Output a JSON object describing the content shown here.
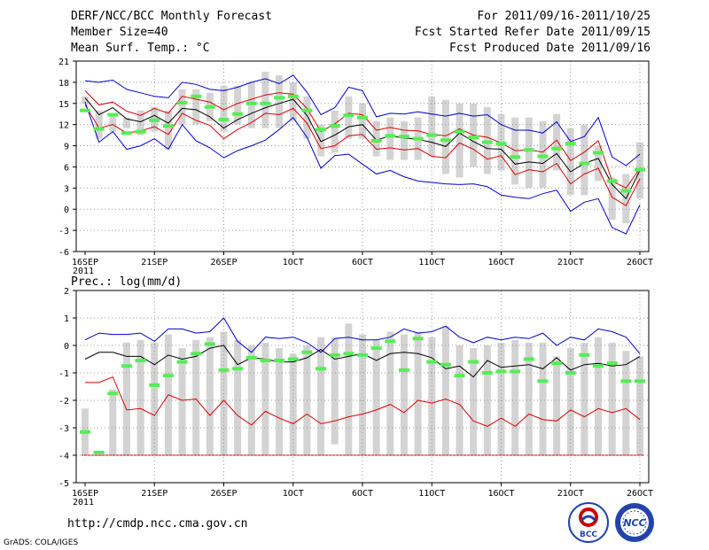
{
  "header": {
    "title": "DERF/NCC/BCC Monthly Forecast",
    "member_size": "Member Size=40",
    "variable": "Mean Surf. Temp.: °C",
    "period": "For 2011/09/16-2011/10/25",
    "started_date": "Fcst Started Refer Date 2011/09/15",
    "produced_date": "Fcst Produced Date 2011/09/16"
  },
  "footer": {
    "url": "http://cmdp.ncc.cma.gov.cn",
    "credit": "GrADS: COLA/IGES",
    "logo_bcc_text": "BCC",
    "logo_ncc_text": "NCC"
  },
  "colors": {
    "outer": "#0000cc",
    "inner": "#dd0000",
    "mean": "#000000",
    "bar": "#d3d3d3",
    "obs": "#55ee55",
    "grid": "#999999"
  },
  "chart_data": [
    {
      "type": "line",
      "name": "temperature",
      "ylabel": "Mean Surf. Temp.: °C",
      "ylim": [
        -6,
        21
      ],
      "yticks": [
        -6,
        -3,
        0,
        3,
        6,
        9,
        12,
        15,
        18,
        21
      ],
      "xticks": [
        {
          "day": 1,
          "label": "16SEP",
          "sub": "2011"
        },
        {
          "day": 6,
          "label": "21SEP"
        },
        {
          "day": 11,
          "label": "26SEP"
        },
        {
          "day": 16,
          "label": "1OCT"
        },
        {
          "day": 21,
          "label": "6OCT"
        },
        {
          "day": 26,
          "label": "11OCT"
        },
        {
          "day": 31,
          "label": "16OCT"
        },
        {
          "day": 36,
          "label": "21OCT"
        },
        {
          "day": 41,
          "label": "26OCT"
        }
      ],
      "grid": true,
      "series": [
        {
          "name": "max",
          "role": "outer",
          "values": [
            18.2,
            18.0,
            18.3,
            17.0,
            16.5,
            16.0,
            15.8,
            18.0,
            17.7,
            17.0,
            16.8,
            17.3,
            18.0,
            18.5,
            17.8,
            19.0,
            16.6,
            13.4,
            14.4,
            17.3,
            16.8,
            13.1,
            13.6,
            13.5,
            13.8,
            13.5,
            13.2,
            13.6,
            13.2,
            13.4,
            12.0,
            11.2,
            11.2,
            10.8,
            12.4,
            9.6,
            10.3,
            13.0,
            7.4,
            6.2,
            7.8
          ]
        },
        {
          "name": "upper",
          "role": "inner",
          "values": [
            16.8,
            14.8,
            15.2,
            13.9,
            13.3,
            14.3,
            13.6,
            16.0,
            15.6,
            15.2,
            14.1,
            15.0,
            15.6,
            16.2,
            16.5,
            16.3,
            14.3,
            11.0,
            12.1,
            13.6,
            13.4,
            11.2,
            11.6,
            11.2,
            11.1,
            10.6,
            10.4,
            11.4,
            10.5,
            10.2,
            9.4,
            8.3,
            8.4,
            8.1,
            9.8,
            6.9,
            8.1,
            9.7,
            4.0,
            3.0,
            5.8
          ]
        },
        {
          "name": "mean",
          "role": "mean",
          "values": [
            15.8,
            13.4,
            14.4,
            12.8,
            12.4,
            13.3,
            12.2,
            14.3,
            14.1,
            13.1,
            11.5,
            12.7,
            13.6,
            14.4,
            15.0,
            15.6,
            13.3,
            9.6,
            10.5,
            11.7,
            12.0,
            9.8,
            10.4,
            10.1,
            9.9,
            9.5,
            8.9,
            10.8,
            9.6,
            8.6,
            8.5,
            6.4,
            6.7,
            6.5,
            7.9,
            5.3,
            6.5,
            7.2,
            3.5,
            1.5,
            5.5
          ]
        },
        {
          "name": "lower",
          "role": "inner",
          "values": [
            14.8,
            11.5,
            12.0,
            10.8,
            11.1,
            11.7,
            10.6,
            13.6,
            12.6,
            11.9,
            10.0,
            11.3,
            12.3,
            13.6,
            13.4,
            14.3,
            12.2,
            8.6,
            9.0,
            10.4,
            10.6,
            8.5,
            8.7,
            8.4,
            8.6,
            7.5,
            7.3,
            9.4,
            8.5,
            7.1,
            7.6,
            4.9,
            5.6,
            5.3,
            6.5,
            3.6,
            5.0,
            5.8,
            1.7,
            0.5,
            4.3
          ]
        },
        {
          "name": "min",
          "role": "outer",
          "values": [
            15.2,
            9.5,
            11.0,
            8.5,
            9.0,
            10.0,
            8.5,
            12.0,
            9.7,
            8.7,
            7.3,
            8.3,
            9.0,
            9.8,
            11.3,
            13.0,
            10.2,
            5.8,
            7.6,
            7.8,
            6.4,
            5.0,
            5.5,
            4.6,
            4.0,
            3.8,
            3.6,
            3.5,
            3.6,
            3.2,
            2.0,
            1.7,
            1.5,
            2.2,
            2.7,
            -0.3,
            1.0,
            1.5,
            -2.6,
            -3.5,
            0.6
          ]
        }
      ],
      "spread": {
        "name": "observed/ensemble range",
        "low": [
          15,
          10,
          11,
          11.5,
          10.5,
          11,
          8.5,
          12,
          12,
          12.5,
          11,
          12,
          11.5,
          11.5,
          11.5,
          12.5,
          10,
          7.5,
          8,
          10,
          10,
          7.5,
          7,
          7,
          7,
          7.5,
          5,
          4.5,
          6,
          5,
          5.5,
          3.5,
          3,
          3,
          5.5,
          2,
          2,
          4,
          -1.5,
          -2,
          1.5
        ],
        "high": [
          16,
          14,
          13.5,
          13,
          14,
          14.5,
          14,
          17,
          17,
          16.5,
          17.5,
          17.5,
          18,
          19.5,
          19,
          18,
          16,
          12,
          14,
          16,
          15,
          12.5,
          13,
          12.5,
          13,
          16,
          15.5,
          15,
          15,
          14.5,
          13.5,
          13,
          13,
          12.5,
          13.5,
          11.5,
          12,
          9,
          4.5,
          5,
          9.5
        ]
      },
      "observed": [
        14.0,
        11.4,
        13.4,
        10.8,
        11.0,
        12.6,
        11.8,
        15.1,
        16.0,
        14.5,
        12.7,
        13.5,
        15.0,
        15.0,
        15.8,
        16.0,
        14.0,
        11.3,
        11.8,
        13.3,
        13.0,
        9.7,
        10.4,
        10.3,
        10.0,
        10.5,
        9.8,
        11.0,
        10.2,
        9.5,
        9.3,
        7.4,
        8.4,
        7.5,
        8.6,
        9.3,
        6.5,
        8.0,
        4.0,
        2.6,
        5.6
      ]
    },
    {
      "type": "line",
      "name": "precipitation",
      "ylabel": "Prec.: log(mm/d)",
      "ylim": [
        -5,
        2
      ],
      "yticks": [
        -5,
        -4,
        -3,
        -2,
        -1,
        0,
        1,
        2
      ],
      "xticks": [
        {
          "day": 1,
          "label": "16SEP",
          "sub": "2011"
        },
        {
          "day": 6,
          "label": "21SEP"
        },
        {
          "day": 11,
          "label": "26SEP"
        },
        {
          "day": 16,
          "label": "1OCT"
        },
        {
          "day": 21,
          "label": "6OCT"
        },
        {
          "day": 26,
          "label": "11OCT"
        },
        {
          "day": 31,
          "label": "16OCT"
        },
        {
          "day": 36,
          "label": "21OCT"
        },
        {
          "day": 41,
          "label": "26OCT"
        }
      ],
      "grid": true,
      "series": [
        {
          "name": "max",
          "role": "outer",
          "values": [
            0.2,
            0.45,
            0.4,
            0.4,
            0.45,
            0.15,
            0.6,
            0.6,
            0.45,
            0.5,
            1.0,
            0.15,
            -0.25,
            0.3,
            0.25,
            0.3,
            0.1,
            -0.25,
            0.25,
            0.3,
            0.2,
            0.2,
            0.3,
            0.6,
            0.45,
            0.5,
            0.7,
            0.3,
            0.1,
            0.3,
            0.2,
            0.3,
            0.25,
            0.45,
            0.0,
            0.3,
            0.2,
            0.6,
            0.5,
            0.3,
            -0.3
          ]
        },
        {
          "name": "mean",
          "role": "mean",
          "values": [
            -0.5,
            -0.25,
            -0.25,
            -0.4,
            -0.4,
            -0.7,
            -0.35,
            -0.5,
            -0.4,
            -0.1,
            0.0,
            -0.7,
            -0.45,
            -0.5,
            -0.6,
            -0.6,
            -0.45,
            -0.15,
            -0.5,
            -0.4,
            -0.3,
            -0.55,
            -0.3,
            -0.25,
            -0.3,
            -0.45,
            -0.85,
            -0.75,
            -1.15,
            -0.55,
            -0.8,
            -0.75,
            -0.7,
            -0.85,
            -0.45,
            -0.9,
            -0.7,
            -0.65,
            -0.75,
            -0.7,
            -0.4
          ]
        },
        {
          "name": "min",
          "role": "inner",
          "values": [
            -1.35,
            -1.35,
            -1.15,
            -2.35,
            -2.3,
            -2.55,
            -1.8,
            -2.0,
            -1.95,
            -2.55,
            -2.0,
            -2.55,
            -2.9,
            -2.4,
            -2.65,
            -2.85,
            -2.5,
            -2.85,
            -2.75,
            -2.6,
            -2.5,
            -2.35,
            -2.15,
            -2.45,
            -2.0,
            -2.1,
            -1.95,
            -2.15,
            -2.75,
            -2.95,
            -2.65,
            -2.95,
            -2.5,
            -2.7,
            -2.75,
            -2.35,
            -2.6,
            -2.3,
            -2.45,
            -2.3,
            -2.7
          ]
        }
      ],
      "floor": -4.0,
      "spread": {
        "name": "ensemble range",
        "low": [
          -4.0,
          -4.0,
          -4.0,
          -4.0,
          -4.0,
          -4.0,
          -4.0,
          -4.0,
          -4.0,
          -4.0,
          -4.0,
          -4.0,
          -4.0,
          -4.0,
          -4.0,
          -4.0,
          -4.0,
          -4.0,
          -3.6,
          -4.0,
          -4.0,
          -4.0,
          -4.0,
          -4.0,
          -4.0,
          -4.0,
          -4.0,
          -4.0,
          -4.0,
          -4.0,
          -4.0,
          -4.0,
          -4.0,
          -4.0,
          -4.0,
          -4.0,
          -4.0,
          -4.0,
          -4.0,
          -4.0,
          -4.0
        ],
        "high": [
          -2.3,
          -4.0,
          -1.6,
          0.1,
          0.2,
          0.1,
          0.4,
          -0.1,
          0.2,
          0.3,
          0.5,
          0.2,
          0.0,
          0.1,
          -0.1,
          -0.3,
          0.0,
          0.3,
          0.3,
          0.8,
          0.4,
          0.2,
          0.5,
          0.4,
          0.5,
          0.3,
          0.7,
          0.0,
          -0.1,
          0.0,
          0.1,
          0.2,
          0.1,
          0.1,
          -0.4,
          -0.1,
          0.1,
          0.3,
          0.1,
          -0.2,
          -0.4
        ]
      },
      "observed": [
        -3.15,
        -3.9,
        -1.75,
        -0.75,
        -0.55,
        -1.45,
        -1.1,
        -0.6,
        -0.3,
        0.05,
        -0.9,
        -0.85,
        -0.45,
        -0.55,
        -0.55,
        -0.5,
        -0.25,
        -0.85,
        -0.35,
        -0.3,
        -0.35,
        -0.1,
        0.15,
        -0.9,
        0.25,
        -0.6,
        -0.7,
        -1.1,
        -0.6,
        -1.0,
        -0.95,
        -0.95,
        -0.5,
        -1.3,
        -0.65,
        -1.0,
        -0.35,
        -0.75,
        -0.65,
        -1.3,
        -1.3
      ]
    }
  ]
}
